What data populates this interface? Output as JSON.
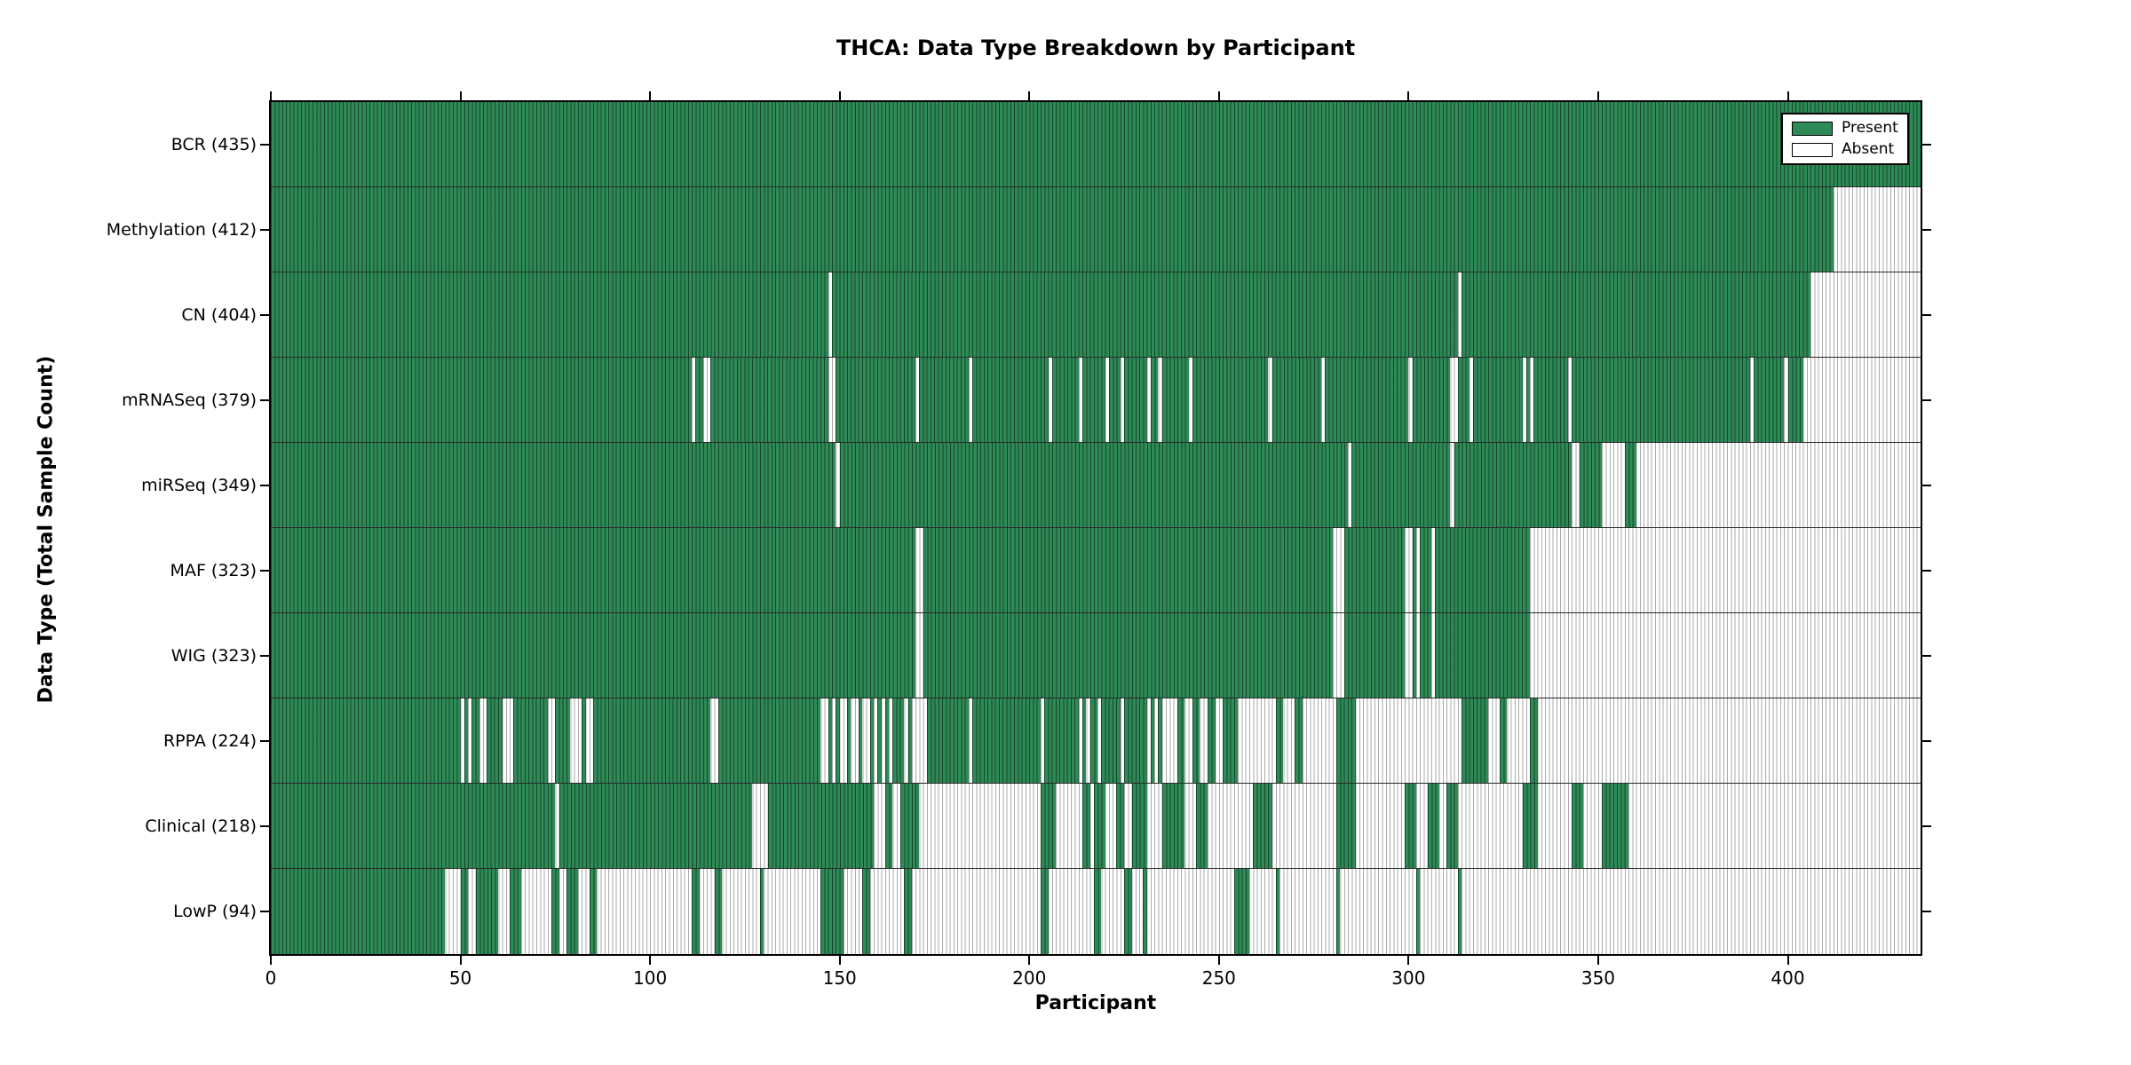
{
  "title": "THCA: Data Type Breakdown by Participant",
  "xlabel": "Participant",
  "ylabel": "Data Type (Total Sample Count)",
  "legend": {
    "present_label": "Present",
    "absent_label": "Absent"
  },
  "colors": {
    "present": "#2e8b57",
    "present_hairline": "rgba(0,0,0,0.50)",
    "absent": "#ffffff",
    "absent_hairline": "#ababab",
    "row_separator": "#2a2a2a",
    "spine": "#000000"
  },
  "chart_data": {
    "type": "heatmap",
    "title": "THCA: Data Type Breakdown by Participant",
    "xlabel": "Participant",
    "ylabel": "Data Type (Total Sample Count)",
    "legend_entries": [
      "Present",
      "Absent"
    ],
    "legend_position": "upper right",
    "x_ticks": [
      0,
      50,
      100,
      150,
      200,
      250,
      300,
      350,
      400
    ],
    "x_range": [
      0,
      435
    ],
    "n_participants": 435,
    "grid": false,
    "rows": [
      {
        "label": "BCR",
        "total": 435,
        "present_ranges": [
          [
            0,
            434
          ]
        ]
      },
      {
        "label": "Methylation",
        "total": 412,
        "present_ranges": [
          [
            0,
            411
          ]
        ]
      },
      {
        "label": "CN",
        "total": 404,
        "present_ranges": [
          [
            0,
            146
          ],
          [
            148,
            312
          ],
          [
            314,
            405
          ]
        ]
      },
      {
        "label": "mRNASeq",
        "total": 379,
        "present_ranges": [
          [
            0,
            110
          ],
          [
            112,
            113
          ],
          [
            116,
            146
          ],
          [
            149,
            169
          ],
          [
            171,
            183
          ],
          [
            185,
            204
          ],
          [
            206,
            212
          ],
          [
            214,
            219
          ],
          [
            221,
            223
          ],
          [
            225,
            230
          ],
          [
            232,
            233
          ],
          [
            235,
            241
          ],
          [
            243,
            262
          ],
          [
            264,
            276
          ],
          [
            278,
            299
          ],
          [
            301,
            310
          ],
          [
            313,
            315
          ],
          [
            317,
            329
          ],
          [
            331,
            331
          ],
          [
            333,
            341
          ],
          [
            343,
            389
          ],
          [
            391,
            398
          ],
          [
            400,
            403
          ]
        ]
      },
      {
        "label": "miRSeq",
        "total": 349,
        "present_ranges": [
          [
            0,
            148
          ],
          [
            150,
            283
          ],
          [
            285,
            310
          ],
          [
            312,
            342
          ],
          [
            345,
            350
          ],
          [
            357,
            359
          ]
        ]
      },
      {
        "label": "MAF",
        "total": 323,
        "present_ranges": [
          [
            0,
            169
          ],
          [
            172,
            279
          ],
          [
            283,
            298
          ],
          [
            301,
            301
          ],
          [
            303,
            305
          ],
          [
            307,
            331
          ]
        ]
      },
      {
        "label": "WIG",
        "total": 323,
        "present_ranges": [
          [
            0,
            169
          ],
          [
            172,
            279
          ],
          [
            283,
            298
          ],
          [
            301,
            301
          ],
          [
            303,
            305
          ],
          [
            307,
            331
          ]
        ]
      },
      {
        "label": "RPPA",
        "total": 224,
        "present_ranges": [
          [
            0,
            49
          ],
          [
            51,
            51
          ],
          [
            53,
            54
          ],
          [
            57,
            60
          ],
          [
            64,
            72
          ],
          [
            75,
            78
          ],
          [
            82,
            82
          ],
          [
            85,
            115
          ],
          [
            118,
            144
          ],
          [
            147,
            147
          ],
          [
            149,
            149
          ],
          [
            152,
            152
          ],
          [
            155,
            155
          ],
          [
            158,
            158
          ],
          [
            160,
            160
          ],
          [
            162,
            162
          ],
          [
            164,
            166
          ],
          [
            168,
            168
          ],
          [
            173,
            183
          ],
          [
            185,
            202
          ],
          [
            204,
            212
          ],
          [
            214,
            214
          ],
          [
            216,
            217
          ],
          [
            219,
            223
          ],
          [
            225,
            230
          ],
          [
            232,
            232
          ],
          [
            234,
            234
          ],
          [
            239,
            240
          ],
          [
            243,
            244
          ],
          [
            247,
            248
          ],
          [
            251,
            254
          ],
          [
            265,
            266
          ],
          [
            270,
            271
          ],
          [
            281,
            285
          ],
          [
            314,
            320
          ],
          [
            324,
            325
          ],
          [
            332,
            333
          ]
        ]
      },
      {
        "label": "Clinical",
        "total": 218,
        "present_ranges": [
          [
            0,
            74
          ],
          [
            76,
            126
          ],
          [
            131,
            158
          ],
          [
            162,
            163
          ],
          [
            166,
            170
          ],
          [
            203,
            206
          ],
          [
            214,
            215
          ],
          [
            217,
            219
          ],
          [
            223,
            224
          ],
          [
            227,
            230
          ],
          [
            235,
            240
          ],
          [
            244,
            246
          ],
          [
            259,
            263
          ],
          [
            281,
            285
          ],
          [
            299,
            301
          ],
          [
            305,
            307
          ],
          [
            310,
            312
          ],
          [
            330,
            333
          ],
          [
            343,
            345
          ],
          [
            351,
            357
          ]
        ]
      },
      {
        "label": "LowP",
        "total": 94,
        "present_ranges": [
          [
            0,
            45
          ],
          [
            50,
            51
          ],
          [
            54,
            59
          ],
          [
            63,
            65
          ],
          [
            74,
            75
          ],
          [
            78,
            80
          ],
          [
            84,
            85
          ],
          [
            111,
            112
          ],
          [
            117,
            118
          ],
          [
            129,
            129
          ],
          [
            145,
            150
          ],
          [
            156,
            157
          ],
          [
            167,
            168
          ],
          [
            203,
            204
          ],
          [
            217,
            218
          ],
          [
            225,
            226
          ],
          [
            230,
            230
          ],
          [
            254,
            257
          ],
          [
            265,
            265
          ],
          [
            281,
            281
          ],
          [
            302,
            302
          ],
          [
            313,
            313
          ]
        ]
      }
    ]
  }
}
